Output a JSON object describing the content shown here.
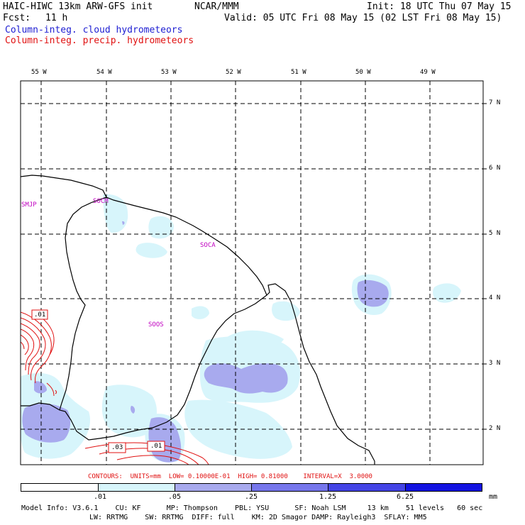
{
  "header": {
    "model": "HAIC-HIWC 13km ARW-GFS init",
    "center": "NCAR/MMM",
    "init": "Init: 18 UTC Thu 07 May 15",
    "fcst_label": "Fcst:",
    "fcst_value": "11 h",
    "valid": "Valid: 05 UTC Fri 08 May 15 (02 LST Fri 08 May 15)",
    "field_cloud": "Column-integ. cloud hydrometeors",
    "field_precip": "Column-integ. precip. hydrometeors"
  },
  "map": {
    "lon_labels": [
      "55 W",
      "54 W",
      "53 W",
      "52 W",
      "51 W",
      "50 W",
      "49 W"
    ],
    "lat_labels": [
      "7 N",
      "6 N",
      "5 N",
      "4 N",
      "3 N",
      "2 N"
    ],
    "stations": [
      "SMJP",
      "SOCM",
      "SOCA",
      "SOOS"
    ],
    "contour_labels": [
      ".01",
      ".03",
      ".01"
    ]
  },
  "contours_info": "CONTOURS:  UNITS=mm  LOW= 0.10000E-01  HIGH= 0.81000    INTERVAL=X  3.0000",
  "colorbar": {
    "colors": [
      "#ffffff",
      "#d7f5fb",
      "#a8aaee",
      "#7676ec",
      "#4444e6",
      "#1212e2"
    ],
    "labels": [
      ".01",
      ".05",
      ".25",
      "1.25",
      "6.25"
    ],
    "units": "mm"
  },
  "model_info": {
    "line1": "Model Info: V3.6.1    CU: KF      MP: Thompson    PBL: YSU      SF: Noah LSM     13 km    51 levels   60 sec",
    "line2": "LW: RRTMG    SW: RRTMG  DIFF: full    KM: 2D Smagor DAMP: Rayleigh3  SFLAY: MM5"
  }
}
